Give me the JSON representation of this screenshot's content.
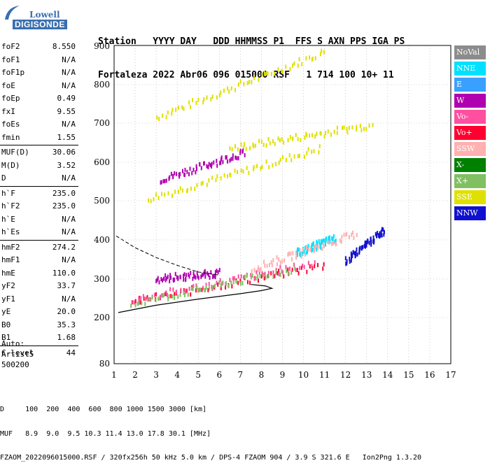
{
  "logo": {
    "line1": "Lowell",
    "line2": "DIGISONDE"
  },
  "header": {
    "labels": "Station   YYYY DAY   DDD HHMMSS P1  FFS S AXN PPS IGA PS",
    "values": "Fortaleza 2022 Abr06 096 015000 RSF   1 714 100 10+ 11"
  },
  "params": [
    {
      "k": "foF2",
      "v": "8.550"
    },
    {
      "k": "foF1",
      "v": "N/A"
    },
    {
      "k": "foF1p",
      "v": "N/A"
    },
    {
      "k": "foE",
      "v": "N/A"
    },
    {
      "k": "foEp",
      "v": "0.49"
    },
    {
      "k": "fxI",
      "v": "9.55"
    },
    {
      "k": "foEs",
      "v": "N/A"
    },
    {
      "k": "fmin",
      "v": "1.55"
    },
    {
      "k": "MUF(D)",
      "v": "30.06",
      "sep": true
    },
    {
      "k": "M(D)",
      "v": "3.52"
    },
    {
      "k": "D",
      "v": "N/A"
    },
    {
      "k": "h`F",
      "v": "235.0",
      "sep": true
    },
    {
      "k": "h`F2",
      "v": "235.0"
    },
    {
      "k": "h`E",
      "v": "N/A"
    },
    {
      "k": "h`Es",
      "v": "N/A"
    },
    {
      "k": "hmF2",
      "v": "274.2",
      "sep": true
    },
    {
      "k": "hmF1",
      "v": "N/A"
    },
    {
      "k": "hmE",
      "v": "110.0"
    },
    {
      "k": "yF2",
      "v": "33.7"
    },
    {
      "k": "yF1",
      "v": "N/A"
    },
    {
      "k": "yE",
      "v": "20.0"
    },
    {
      "k": "B0",
      "v": "35.3"
    },
    {
      "k": "B1",
      "v": "1.68"
    },
    {
      "k": "C-level",
      "v": "44",
      "sep": true
    }
  ],
  "auto": {
    "line1": "Auto:",
    "line2": "Artist5",
    "line3": "500200"
  },
  "legend": [
    {
      "label": "NoVal",
      "color": "#8c8c8c"
    },
    {
      "label": "NNE",
      "color": "#00e0ff"
    },
    {
      "label": "E",
      "color": "#3aa0ff"
    },
    {
      "label": "W",
      "color": "#b000b0"
    },
    {
      "label": "Vo-",
      "color": "#ff4fa0"
    },
    {
      "label": "Vo+",
      "color": "#ff0030"
    },
    {
      "label": "SSW",
      "color": "#ffb0b0"
    },
    {
      "label": "X-",
      "color": "#008000"
    },
    {
      "label": "X+",
      "color": "#80c060"
    },
    {
      "label": "SSE",
      "color": "#e0e000"
    },
    {
      "label": "NNW",
      "color": "#1010d0"
    }
  ],
  "chart_data": {
    "type": "scatter",
    "xlabel": "",
    "ylabel": "",
    "xlim": [
      1,
      17
    ],
    "ylim": [
      80,
      900
    ],
    "x_ticks": [
      "1",
      "2",
      "3",
      "4",
      "5",
      "6",
      "7",
      "8",
      "9",
      "10",
      "11",
      "12",
      "13",
      "14",
      "15",
      "16",
      "17"
    ],
    "y_ticks": [
      {
        "v": 900,
        "label": "900"
      },
      {
        "v": 800,
        "label": "800"
      },
      {
        "v": 700,
        "label": "700"
      },
      {
        "v": 600,
        "label": "600"
      },
      {
        "v": 500,
        "label": "500"
      },
      {
        "v": 400,
        "label": "400"
      },
      {
        "v": 300,
        "label": "300"
      },
      {
        "v": 200,
        "label": "200"
      },
      {
        "v": 80,
        "label": "80"
      }
    ],
    "traces": [
      {
        "name": "SSE",
        "color": "#e0e000",
        "from": [
          3.0,
          720
        ],
        "to": [
          11.0,
          890
        ]
      },
      {
        "name": "SSE",
        "color": "#e0e000",
        "from": [
          2.6,
          510
        ],
        "to": [
          10.8,
          640
        ]
      },
      {
        "name": "SSE",
        "color": "#e0e000",
        "from": [
          6.5,
          640
        ],
        "to": [
          13.2,
          700
        ]
      },
      {
        "name": "W",
        "color": "#b000b0",
        "from": [
          3.2,
          560
        ],
        "to": [
          7.2,
          630
        ]
      },
      {
        "name": "Vo+",
        "color": "#ff0030",
        "from": [
          1.8,
          245
        ],
        "to": [
          11.0,
          340
        ]
      },
      {
        "name": "Vo-",
        "color": "#ff4fa0",
        "from": [
          1.8,
          250
        ],
        "to": [
          10.5,
          345
        ]
      },
      {
        "name": "W",
        "color": "#b000b0",
        "from": [
          3.0,
          305
        ],
        "to": [
          6.0,
          320
        ]
      },
      {
        "name": "NNE",
        "color": "#00e0ff",
        "from": [
          9.6,
          370
        ],
        "to": [
          11.5,
          410
        ]
      },
      {
        "name": "NNW",
        "color": "#1010d0",
        "from": [
          12.0,
          350
        ],
        "to": [
          13.8,
          430
        ]
      },
      {
        "name": "SSW",
        "color": "#ffb0b0",
        "from": [
          7.5,
          330
        ],
        "to": [
          12.5,
          420
        ]
      },
      {
        "name": "X+",
        "color": "#80c060",
        "from": [
          1.8,
          240
        ],
        "to": [
          9.5,
          330
        ]
      }
    ],
    "profile": [
      [
        1.2,
        213
      ],
      [
        3,
        232
      ],
      [
        5,
        248
      ],
      [
        7,
        262
      ],
      [
        8,
        270
      ],
      [
        8.5,
        276
      ],
      [
        8.2,
        282
      ],
      [
        7.5,
        286
      ]
    ],
    "extrapolated": [
      [
        1.1,
        410
      ],
      [
        2,
        380
      ],
      [
        3,
        355
      ],
      [
        4,
        335
      ],
      [
        5,
        318
      ],
      [
        6,
        310
      ]
    ]
  },
  "footer": {
    "line1": "D     100  200  400  600  800 1000 1500 3000 [km]",
    "line2": "MUF   8.9  9.0  9.5 10.3 11.4 13.0 17.8 30.1 [MHz]",
    "line3": "FZAOM_2022096015000.RSF / 320fx256h 50 kHz 5.0 km / DPS-4 FZAOM 904 / 3.9 S 321.6 E   Ion2Png 1.3.20"
  }
}
